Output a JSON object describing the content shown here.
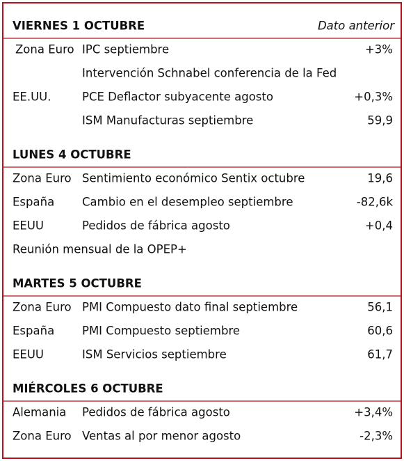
{
  "sections": [
    {
      "title": "VIERNES 1 OCTUBRE",
      "note": "Dato anterior",
      "rows": [
        {
          "region": "Zona Euro",
          "event": "IPC septiembre",
          "value": "+3%"
        },
        {
          "event": "Intervención Schnabel conferencia de la Fed"
        },
        {
          "region": "EE.UU.",
          "event": "PCE Deflactor subyacente agosto",
          "value": "+0,3%"
        },
        {
          "event": "ISM Manufacturas septiembre",
          "value": "59,9"
        }
      ]
    },
    {
      "title": "LUNES 4 OCTUBRE",
      "rows": [
        {
          "region": "Zona Euro",
          "event": "Sentimiento económico Sentix octubre",
          "value": "19,6"
        },
        {
          "region": "España",
          "event": "Cambio en el desempleo septiembre",
          "value": "-82,6k"
        },
        {
          "region": "EEUU",
          "event": "Pedidos de fábrica agosto",
          "value": "+0,4"
        },
        {
          "text": "Reunión mensual de la OPEP+"
        }
      ]
    },
    {
      "title": "MARTES 5 OCTUBRE",
      "rows": [
        {
          "region": "Zona Euro",
          "event": "PMI Compuesto dato final septiembre",
          "value": "56,1"
        },
        {
          "region": "España",
          "event": "PMI Compuesto septiembre",
          "value": "60,6"
        },
        {
          "region": "EEUU",
          "event": "ISM Servicios septiembre",
          "value": "61,7"
        }
      ]
    },
    {
      "title": "MIÉRCOLES 6 OCTUBRE",
      "rows": [
        {
          "region": "Alemania",
          "event": "Pedidos de fábrica agosto",
          "value": "+3,4%"
        },
        {
          "region": "Zona Euro",
          "event": "Ventas al por menor agosto",
          "value": "-2,3%"
        }
      ]
    }
  ]
}
